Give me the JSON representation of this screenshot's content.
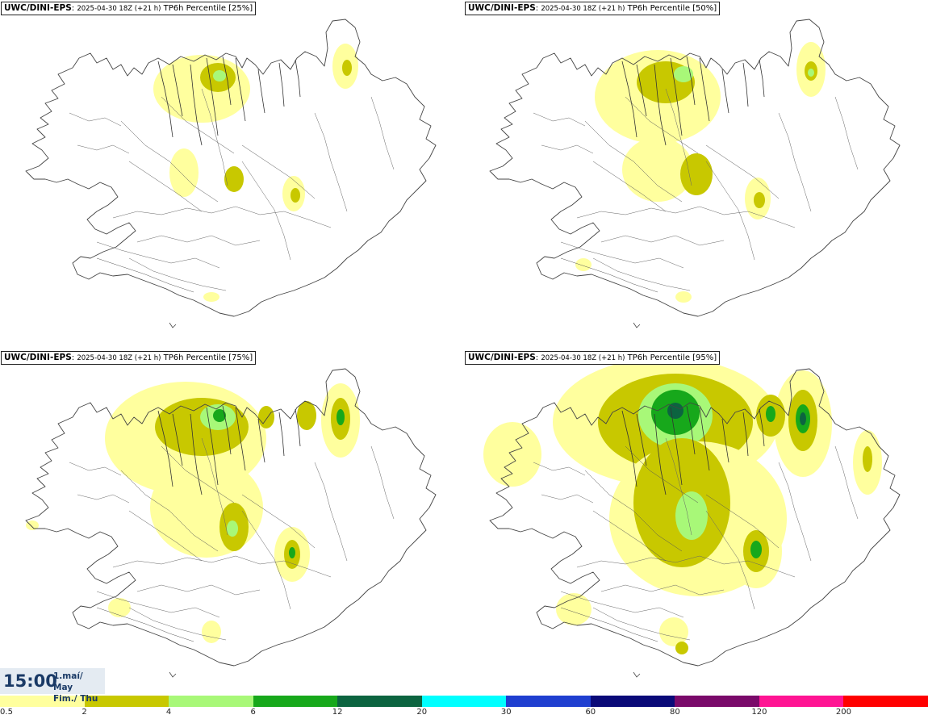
{
  "panels": [
    {
      "model": "UWC/DINI-EPS",
      "run": "2025-04-30 18Z (+21 h)",
      "title": "TP6h Percentile [25%]",
      "level": 0
    },
    {
      "model": "UWC/DINI-EPS",
      "run": "2025-04-30 18Z (+21 h)",
      "title": "TP6h Percentile [50%]",
      "level": 1
    },
    {
      "model": "UWC/DINI-EPS",
      "run": "2025-04-30 18Z (+21 h)",
      "title": "TP6h Percentile [75%]",
      "level": 2
    },
    {
      "model": "UWC/DINI-EPS",
      "run": "2025-04-30 18Z (+21 h)",
      "title": "TP6h Percentile [95%]",
      "level": 3
    }
  ],
  "time": {
    "clock": "15:00",
    "date_line1": "1.maí/ May",
    "date_line2": "Fim./ Thu"
  },
  "legend": {
    "colors": [
      "#ffff9e",
      "#c8c800",
      "#a8f878",
      "#17a81b",
      "#0c6440",
      "#00ffff",
      "#1f3fd0",
      "#0a0a78",
      "#7a0a6a",
      "#ff1493",
      "#ff0000"
    ],
    "labels": [
      "0.5",
      "2",
      "4",
      "6",
      "12",
      "20",
      "30",
      "60",
      "80",
      "120",
      "200"
    ]
  }
}
